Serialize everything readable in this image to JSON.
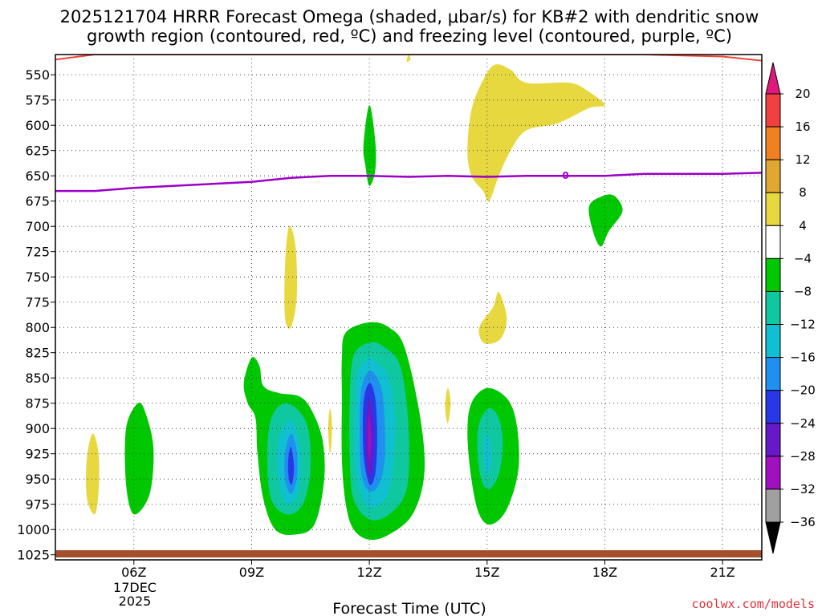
{
  "chart_data": {
    "type": "contour-time-height",
    "title_line1": "2025121704 HRRR Forecast Omega (shaded, μbar/s) for KB#2 with dendritic snow",
    "title_line2": "growth region (contoured, red, ºC) and freezing level (contoured, purple, ºC)",
    "xlabel": "Forecast Time (UTC)",
    "credit": "coolwx.com/models",
    "date_label_1": "17DEC",
    "date_label_2": "2025",
    "y_axis": {
      "unit": "mb",
      "range": [
        530,
        1030
      ],
      "ticks": [
        550,
        575,
        600,
        625,
        650,
        675,
        700,
        725,
        750,
        775,
        800,
        825,
        850,
        875,
        900,
        925,
        950,
        975,
        1000,
        1025
      ]
    },
    "x_axis": {
      "unit": "hour UTC",
      "range": [
        4,
        22
      ],
      "ticks": [
        {
          "hour": 6,
          "label": "06Z"
        },
        {
          "hour": 9,
          "label": "09Z"
        },
        {
          "hour": 12,
          "label": "12Z"
        },
        {
          "hour": 15,
          "label": "15Z"
        },
        {
          "hour": 18,
          "label": "18Z"
        },
        {
          "hour": 21,
          "label": "21Z"
        }
      ]
    },
    "colorbar": {
      "labels": [
        "20",
        "16",
        "12",
        "8",
        "4",
        "−4",
        "−8",
        "−12",
        "−16",
        "−20",
        "−24",
        "−28",
        "−32",
        "−36"
      ],
      "bins": [
        {
          "range": [
            16,
            20
          ],
          "color": "#f04040"
        },
        {
          "range": [
            12,
            16
          ],
          "color": "#f08020"
        },
        {
          "range": [
            8,
            12
          ],
          "color": "#e0a830"
        },
        {
          "range": [
            4,
            8
          ],
          "color": "#e8d840"
        },
        {
          "range": [
            -4,
            4
          ],
          "color": "#ffffff"
        },
        {
          "range": [
            -8,
            -4
          ],
          "color": "#00c800"
        },
        {
          "range": [
            -12,
            -8
          ],
          "color": "#10c8a0"
        },
        {
          "range": [
            -16,
            -12
          ],
          "color": "#10c0d0"
        },
        {
          "range": [
            -20,
            -16
          ],
          "color": "#2090f0"
        },
        {
          "range": [
            -24,
            -20
          ],
          "color": "#2838e8"
        },
        {
          "range": [
            -28,
            -24
          ],
          "color": "#6818c8"
        },
        {
          "range": [
            -32,
            -28
          ],
          "color": "#a010c0"
        },
        {
          "range": [
            -36,
            -32
          ],
          "color": "#a0a0a0"
        }
      ],
      "over_color": "#e0187c",
      "under_color": "#000000"
    },
    "freezing_level": {
      "label": "0",
      "label_hour": 17,
      "points": [
        [
          4,
          665
        ],
        [
          5,
          665
        ],
        [
          6,
          662
        ],
        [
          7,
          660
        ],
        [
          8,
          658
        ],
        [
          9,
          656
        ],
        [
          10,
          652
        ],
        [
          11,
          650
        ],
        [
          12,
          650
        ],
        [
          13,
          651
        ],
        [
          14,
          650
        ],
        [
          15,
          651
        ],
        [
          16,
          650
        ],
        [
          17,
          650
        ],
        [
          18,
          650
        ],
        [
          19,
          648
        ],
        [
          20,
          648
        ],
        [
          21,
          648
        ],
        [
          22,
          647
        ]
      ]
    },
    "dendritic_line": {
      "points": [
        [
          4,
          535
        ],
        [
          5,
          530
        ],
        [
          19,
          530
        ],
        [
          21,
          532
        ],
        [
          22,
          536
        ]
      ]
    },
    "features": [
      {
        "value": 6,
        "polygon": [
          [
            4.95,
            905
          ],
          [
            4.8,
            930
          ],
          [
            4.8,
            968
          ],
          [
            5.0,
            985
          ],
          [
            5.1,
            962
          ],
          [
            5.1,
            925
          ]
        ]
      },
      {
        "value": -6,
        "polygon": [
          [
            6.1,
            875
          ],
          [
            5.8,
            900
          ],
          [
            5.8,
            955
          ],
          [
            6.0,
            985
          ],
          [
            6.4,
            965
          ],
          [
            6.5,
            920
          ],
          [
            6.3,
            885
          ]
        ]
      },
      {
        "value": 6,
        "polygon": [
          [
            9.95,
            700
          ],
          [
            9.85,
            740
          ],
          [
            9.85,
            790
          ],
          [
            10.0,
            800
          ],
          [
            10.15,
            770
          ],
          [
            10.12,
            720
          ]
        ]
      },
      {
        "value": -6,
        "polygon": [
          [
            9.0,
            830
          ],
          [
            8.8,
            855
          ],
          [
            8.9,
            875
          ],
          [
            9.1,
            890
          ],
          [
            9.15,
            925
          ],
          [
            9.3,
            970
          ],
          [
            9.6,
            1000
          ],
          [
            10.1,
            1005
          ],
          [
            10.6,
            995
          ],
          [
            10.85,
            950
          ],
          [
            10.8,
            910
          ],
          [
            10.5,
            880
          ],
          [
            10.2,
            868
          ],
          [
            9.7,
            865
          ],
          [
            9.3,
            858
          ],
          [
            9.2,
            838
          ]
        ]
      },
      {
        "value": -10,
        "polygon": [
          [
            9.9,
            875
          ],
          [
            9.5,
            890
          ],
          [
            9.4,
            930
          ],
          [
            9.5,
            970
          ],
          [
            9.9,
            985
          ],
          [
            10.3,
            975
          ],
          [
            10.5,
            940
          ],
          [
            10.4,
            895
          ]
        ]
      },
      {
        "value": -14,
        "polygon": [
          [
            9.95,
            892
          ],
          [
            9.7,
            910
          ],
          [
            9.65,
            940
          ],
          [
            9.8,
            968
          ],
          [
            10.0,
            975
          ],
          [
            10.2,
            960
          ],
          [
            10.25,
            925
          ],
          [
            10.1,
            898
          ]
        ]
      },
      {
        "value": -18,
        "polygon": [
          [
            10.0,
            905
          ],
          [
            9.85,
            925
          ],
          [
            9.85,
            950
          ],
          [
            10.0,
            965
          ],
          [
            10.15,
            950
          ],
          [
            10.15,
            922
          ]
        ]
      },
      {
        "value": -22,
        "polygon": [
          [
            10.0,
            918
          ],
          [
            9.93,
            933
          ],
          [
            9.95,
            950
          ],
          [
            10.03,
            955
          ],
          [
            10.08,
            938
          ]
        ]
      },
      {
        "value": 6,
        "polygon": [
          [
            11.0,
            880
          ],
          [
            10.95,
            900
          ],
          [
            11.0,
            925
          ],
          [
            11.05,
            900
          ]
        ]
      },
      {
        "value": -6,
        "polygon": [
          [
            12.0,
            580
          ],
          [
            11.85,
            620
          ],
          [
            11.9,
            640
          ],
          [
            12.0,
            660
          ],
          [
            12.15,
            645
          ],
          [
            12.15,
            615
          ]
        ]
      },
      {
        "value": -6,
        "polygon": [
          [
            12.0,
            795
          ],
          [
            11.4,
            805
          ],
          [
            11.3,
            830
          ],
          [
            11.3,
            870
          ],
          [
            11.3,
            930
          ],
          [
            11.4,
            975
          ],
          [
            11.6,
            1000
          ],
          [
            12.0,
            1010
          ],
          [
            12.5,
            1005
          ],
          [
            13.1,
            985
          ],
          [
            13.4,
            945
          ],
          [
            13.3,
            890
          ],
          [
            12.9,
            820
          ],
          [
            12.5,
            800
          ]
        ]
      },
      {
        "value": -10,
        "polygon": [
          [
            12.0,
            815
          ],
          [
            11.6,
            828
          ],
          [
            11.5,
            870
          ],
          [
            11.5,
            930
          ],
          [
            11.6,
            970
          ],
          [
            12.0,
            990
          ],
          [
            12.5,
            985
          ],
          [
            12.95,
            960
          ],
          [
            13.0,
            900
          ],
          [
            12.8,
            840
          ],
          [
            12.4,
            820
          ]
        ]
      },
      {
        "value": -14,
        "polygon": [
          [
            12.0,
            830
          ],
          [
            11.7,
            845
          ],
          [
            11.65,
            880
          ],
          [
            11.65,
            935
          ],
          [
            11.8,
            965
          ],
          [
            12.0,
            978
          ],
          [
            12.4,
            970
          ],
          [
            12.6,
            940
          ],
          [
            12.65,
            890
          ],
          [
            12.5,
            850
          ],
          [
            12.2,
            835
          ]
        ]
      },
      {
        "value": -18,
        "polygon": [
          [
            12.0,
            843
          ],
          [
            11.8,
            860
          ],
          [
            11.75,
            900
          ],
          [
            11.8,
            945
          ],
          [
            12.0,
            962
          ],
          [
            12.25,
            955
          ],
          [
            12.4,
            925
          ],
          [
            12.35,
            870
          ],
          [
            12.2,
            850
          ]
        ]
      },
      {
        "value": -22,
        "polygon": [
          [
            12.0,
            855
          ],
          [
            11.85,
            875
          ],
          [
            11.85,
            925
          ],
          [
            12.0,
            955
          ],
          [
            12.15,
            945
          ],
          [
            12.2,
            910
          ],
          [
            12.15,
            870
          ]
        ]
      },
      {
        "value": -26,
        "polygon": [
          [
            12.0,
            870
          ],
          [
            11.92,
            895
          ],
          [
            11.92,
            928
          ],
          [
            12.0,
            948
          ],
          [
            12.08,
            935
          ],
          [
            12.1,
            900
          ]
        ]
      },
      {
        "value": -30,
        "polygon": [
          [
            12.0,
            885
          ],
          [
            11.96,
            905
          ],
          [
            11.98,
            925
          ],
          [
            12.02,
            930
          ],
          [
            12.05,
            910
          ]
        ]
      },
      {
        "value": 6,
        "polygon": [
          [
            14.0,
            860
          ],
          [
            13.93,
            878
          ],
          [
            14.0,
            895
          ],
          [
            14.07,
            875
          ]
        ]
      },
      {
        "value": -6,
        "polygon": [
          [
            15.0,
            860
          ],
          [
            14.6,
            875
          ],
          [
            14.5,
            905
          ],
          [
            14.6,
            950
          ],
          [
            14.8,
            985
          ],
          [
            15.1,
            995
          ],
          [
            15.5,
            980
          ],
          [
            15.8,
            940
          ],
          [
            15.75,
            895
          ],
          [
            15.5,
            870
          ]
        ]
      },
      {
        "value": -10,
        "polygon": [
          [
            15.05,
            880
          ],
          [
            14.8,
            895
          ],
          [
            14.75,
            920
          ],
          [
            14.85,
            950
          ],
          [
            15.05,
            960
          ],
          [
            15.3,
            945
          ],
          [
            15.4,
            915
          ],
          [
            15.3,
            890
          ]
        ]
      },
      {
        "value": -14,
        "polygon": [
          [
            15.0,
            905
          ],
          [
            14.92,
            920
          ],
          [
            14.95,
            940
          ],
          [
            15.05,
            945
          ],
          [
            15.12,
            925
          ]
        ]
      },
      {
        "value": 6,
        "polygon": [
          [
            15.3,
            765
          ],
          [
            15.15,
            780
          ],
          [
            14.8,
            800
          ],
          [
            14.9,
            815
          ],
          [
            15.2,
            815
          ],
          [
            15.4,
            808
          ],
          [
            15.5,
            790
          ]
        ]
      },
      {
        "value": 6,
        "polygon": [
          [
            15.2,
            540
          ],
          [
            14.9,
            555
          ],
          [
            14.6,
            585
          ],
          [
            14.5,
            625
          ],
          [
            14.6,
            650
          ],
          [
            14.9,
            665
          ],
          [
            15.05,
            675
          ],
          [
            15.3,
            650
          ],
          [
            15.6,
            625
          ],
          [
            16.0,
            605
          ],
          [
            16.8,
            598
          ],
          [
            17.6,
            583
          ],
          [
            18.0,
            580
          ],
          [
            17.6,
            567
          ],
          [
            17.1,
            558
          ],
          [
            16.0,
            558
          ],
          [
            15.6,
            545
          ]
        ]
      },
      {
        "value": 6,
        "polygon": [
          [
            13.0,
            530
          ],
          [
            12.95,
            537
          ],
          [
            13.05,
            535
          ]
        ]
      },
      {
        "value": -6,
        "polygon": [
          [
            17.95,
            670
          ],
          [
            17.6,
            680
          ],
          [
            17.7,
            705
          ],
          [
            17.9,
            720
          ],
          [
            18.1,
            705
          ],
          [
            18.45,
            685
          ],
          [
            18.25,
            670
          ]
        ]
      }
    ]
  }
}
